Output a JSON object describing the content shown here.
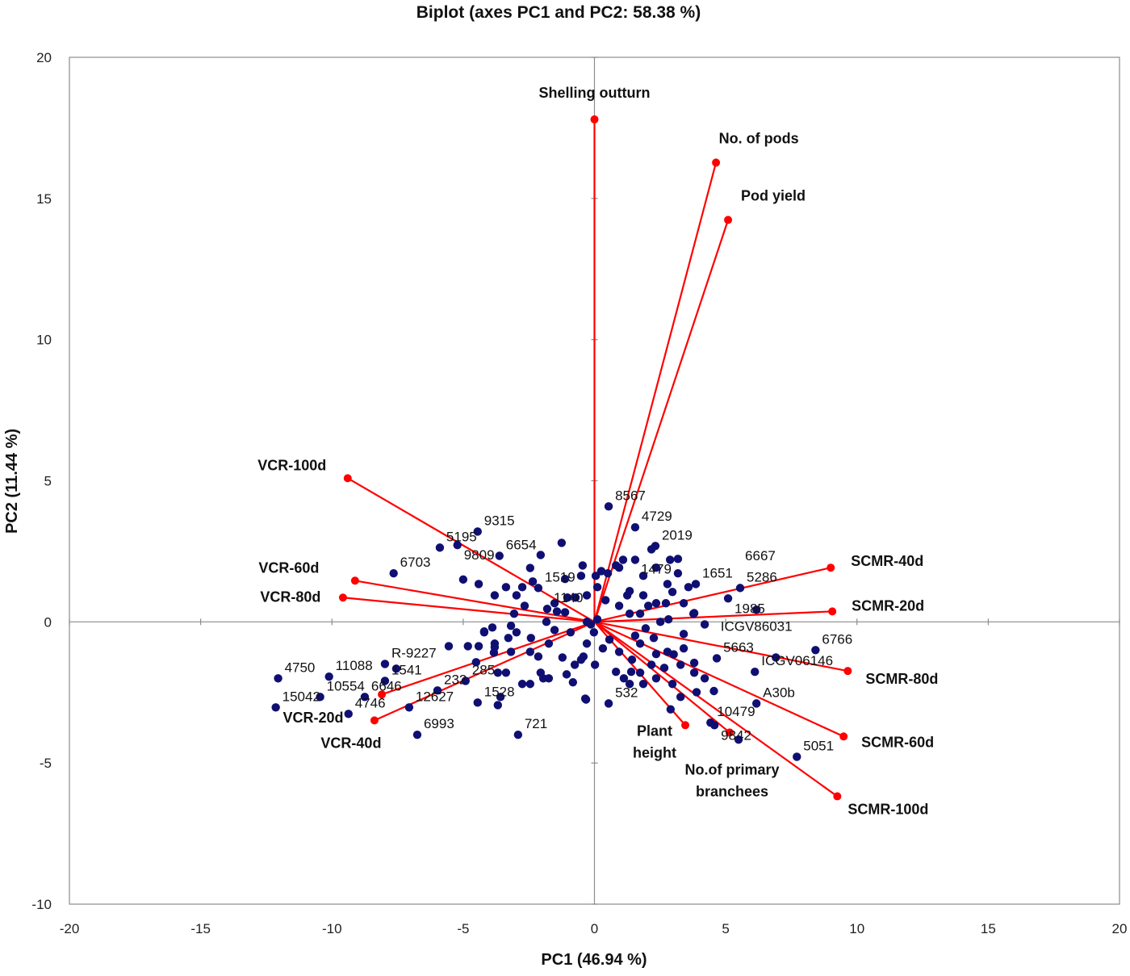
{
  "chart_data": {
    "type": "scatter",
    "subtype": "biplot",
    "title": "Biplot (axes PC1 and PC2: 58.38 %)",
    "xlabel": "PC1 (46.94 %)",
    "ylabel": "PC2 (11.44 %)",
    "xlim": [
      -20,
      20
    ],
    "ylim": [
      -10,
      20
    ],
    "xticks": [
      -20,
      -15,
      -10,
      -5,
      0,
      5,
      10,
      15,
      20
    ],
    "yticks": [
      -10,
      -5,
      0,
      5,
      10,
      15,
      20
    ],
    "grid": false,
    "colors": {
      "vectors": "#ff0000",
      "points": "#0f0f73",
      "axes": "#8c8c8c"
    },
    "vectors": [
      {
        "label": [
          "Shelling outturn"
        ],
        "x": 0.0,
        "y": 17.8
      },
      {
        "label": [
          "No. of pods"
        ],
        "x": 4.63,
        "y": 16.27
      },
      {
        "label": [
          "Pod yield"
        ],
        "x": 5.09,
        "y": 14.24
      },
      {
        "label": [
          "VCR-100d"
        ],
        "x": -9.4,
        "y": 5.09
      },
      {
        "label": [
          "VCR-60d"
        ],
        "x": -9.12,
        "y": 1.46
      },
      {
        "label": [
          "VCR-80d"
        ],
        "x": -9.58,
        "y": 0.86
      },
      {
        "label": [
          "VCR-20d"
        ],
        "x": -8.1,
        "y": -2.57
      },
      {
        "label": [
          "VCR-40d"
        ],
        "x": -8.38,
        "y": -3.49
      },
      {
        "label": [
          "SCMR-40d"
        ],
        "x": 9.0,
        "y": 1.92
      },
      {
        "label": [
          "SCMR-20d"
        ],
        "x": 9.06,
        "y": 0.37
      },
      {
        "label": [
          "SCMR-80d"
        ],
        "x": 9.65,
        "y": -1.74
      },
      {
        "label": [
          "SCMR-60d"
        ],
        "x": 9.49,
        "y": -4.06
      },
      {
        "label": [
          "SCMR-100d"
        ],
        "x": 9.25,
        "y": -6.18
      },
      {
        "label": [
          "Plant",
          "height"
        ],
        "x": 3.46,
        "y": -3.66
      },
      {
        "label": [
          "No.of primary",
          "branchees"
        ],
        "x": 5.15,
        "y": -3.92
      }
    ],
    "labeled_points": [
      {
        "label": "8567",
        "x": 0.54,
        "y": 4.09
      },
      {
        "label": "4729",
        "x": 1.55,
        "y": 3.35
      },
      {
        "label": "2019",
        "x": 2.32,
        "y": 2.69
      },
      {
        "label": "9315",
        "x": -4.45,
        "y": 3.2
      },
      {
        "label": "5195",
        "x": -5.89,
        "y": 2.63
      },
      {
        "label": "9809",
        "x": -5.22,
        "y": 2.72
      },
      {
        "label": "6654",
        "x": -3.62,
        "y": 2.34
      },
      {
        "label": "6703",
        "x": -7.65,
        "y": 1.72
      },
      {
        "label": "1519",
        "x": -2.14,
        "y": 1.2
      },
      {
        "label": "1140",
        "x": -1.8,
        "y": 0.46
      },
      {
        "label": "5286",
        "x": 5.55,
        "y": 1.2
      },
      {
        "label": "1651",
        "x": 3.86,
        "y": 1.34
      },
      {
        "label": "1479",
        "x": 3.18,
        "y": 2.23
      },
      {
        "label": "1985",
        "x": 5.09,
        "y": 0.83
      },
      {
        "label": "ICGV86031",
        "x": 6.17,
        "y": 0.43
      },
      {
        "label": "6766",
        "x": 8.42,
        "y": -1.0
      },
      {
        "label": "ICGV06146",
        "x": 6.11,
        "y": -1.77
      },
      {
        "label": "A30b",
        "x": 6.17,
        "y": -2.89
      },
      {
        "label": "5663",
        "x": 4.66,
        "y": -1.29
      },
      {
        "label": "10479",
        "x": 4.42,
        "y": -3.57
      },
      {
        "label": "9842",
        "x": 4.57,
        "y": -3.66
      },
      {
        "label": "6667",
        "x": 5.49,
        "y": -4.17
      },
      {
        "label": "5051",
        "x": 7.71,
        "y": -4.78
      },
      {
        "label": "532",
        "x": 0.54,
        "y": -2.89
      },
      {
        "label": "11088",
        "x": -10.11,
        "y": -1.94
      },
      {
        "label": "4750",
        "x": -12.05,
        "y": -2.0
      },
      {
        "label": "15042",
        "x": -12.14,
        "y": -3.03
      },
      {
        "label": "10554",
        "x": -10.45,
        "y": -2.66
      },
      {
        "label": "6646",
        "x": -8.75,
        "y": -2.66
      },
      {
        "label": "4746",
        "x": -9.37,
        "y": -3.26
      },
      {
        "label": "6993",
        "x": -6.75,
        "y": -4.0
      },
      {
        "label": "721",
        "x": -2.91,
        "y": -4.0
      },
      {
        "label": "12627",
        "x": -7.06,
        "y": -3.03
      },
      {
        "label": "232",
        "x": -5.98,
        "y": -2.43
      },
      {
        "label": "R-9227",
        "x": -7.98,
        "y": -1.49
      },
      {
        "label": "1541",
        "x": -7.98,
        "y": -2.09
      },
      {
        "label": "1528",
        "x": -4.45,
        "y": -2.86
      },
      {
        "label": "285",
        "x": -4.91,
        "y": -2.09
      }
    ],
    "points": [
      [
        -1.25,
        2.8
      ],
      [
        -0.45,
        2.0
      ],
      [
        -0.51,
        1.63
      ],
      [
        0.05,
        1.63
      ],
      [
        0.26,
        1.8
      ],
      [
        0.51,
        1.72
      ],
      [
        0.11,
        1.23
      ],
      [
        0.42,
        0.77
      ],
      [
        0.82,
        2.0
      ],
      [
        0.94,
        0.57
      ],
      [
        1.25,
        0.94
      ],
      [
        1.34,
        0.29
      ],
      [
        1.74,
        0.29
      ],
      [
        2.05,
        0.57
      ],
      [
        2.72,
        0.66
      ],
      [
        3.8,
        0.31
      ],
      [
        4.2,
        -0.09
      ],
      [
        2.51,
        0.0
      ],
      [
        2.82,
        0.09
      ],
      [
        3.4,
        -0.43
      ],
      [
        1.95,
        -0.23
      ],
      [
        1.55,
        -0.49
      ],
      [
        1.74,
        -0.77
      ],
      [
        2.26,
        -0.57
      ],
      [
        0.94,
        -1.06
      ],
      [
        0.57,
        -0.63
      ],
      [
        0.32,
        -0.94
      ],
      [
        0.02,
        -1.52
      ],
      [
        -0.42,
        -1.23
      ],
      [
        -0.29,
        -0.77
      ],
      [
        -0.51,
        -1.34
      ],
      [
        -0.75,
        -1.52
      ],
      [
        -1.22,
        -1.26
      ],
      [
        -1.06,
        -1.86
      ],
      [
        -0.82,
        -2.14
      ],
      [
        -0.35,
        -2.72
      ],
      [
        0.82,
        -1.77
      ],
      [
        1.12,
        -2.0
      ],
      [
        1.43,
        -1.34
      ],
      [
        1.4,
        -1.77
      ],
      [
        -0.14,
        -0.09
      ],
      [
        0.11,
        0.09
      ],
      [
        -0.29,
        0.0
      ],
      [
        -0.02,
        -0.37
      ],
      [
        -0.91,
        -0.37
      ],
      [
        -1.52,
        -0.29
      ],
      [
        -1.83,
        0.0
      ],
      [
        -1.43,
        0.37
      ],
      [
        -1.12,
        0.34
      ],
      [
        -1.52,
        0.66
      ],
      [
        -3.06,
        0.29
      ],
      [
        -3.18,
        -0.14
      ],
      [
        -2.97,
        -0.37
      ],
      [
        -3.89,
        -0.2
      ],
      [
        -4.2,
        -0.37
      ],
      [
        -3.8,
        -0.77
      ],
      [
        -3.28,
        -0.57
      ],
      [
        -2.42,
        -0.57
      ],
      [
        -1.74,
        -0.77
      ],
      [
        -2.45,
        1.91
      ],
      [
        -2.05,
        2.37
      ],
      [
        -1.12,
        1.52
      ],
      [
        -1.03,
        0.86
      ],
      [
        -0.72,
        0.86
      ],
      [
        -0.29,
        0.94
      ],
      [
        -2.66,
        0.57
      ],
      [
        -2.35,
        1.43
      ],
      [
        -2.75,
        1.23
      ],
      [
        -3.37,
        1.23
      ],
      [
        -2.97,
        0.94
      ],
      [
        -3.8,
        0.94
      ],
      [
        -4.41,
        1.34
      ],
      [
        0.94,
        1.92
      ],
      [
        1.09,
        2.2
      ],
      [
        1.34,
        1.09
      ],
      [
        1.86,
        0.94
      ],
      [
        2.35,
        0.66
      ],
      [
        2.78,
        1.34
      ],
      [
        1.86,
        1.63
      ],
      [
        2.35,
        1.92
      ],
      [
        1.55,
        2.2
      ],
      [
        2.17,
        2.57
      ],
      [
        2.88,
        2.2
      ],
      [
        3.18,
        1.72
      ],
      [
        3.58,
        1.23
      ],
      [
        3.4,
        0.66
      ],
      [
        2.97,
        1.06
      ],
      [
        2.78,
        -1.06
      ],
      [
        3.4,
        -0.94
      ],
      [
        2.35,
        -1.14
      ],
      [
        2.17,
        -1.52
      ],
      [
        2.66,
        -1.63
      ],
      [
        3.28,
        -1.52
      ],
      [
        3.8,
        -1.8
      ],
      [
        4.2,
        -2.0
      ],
      [
        1.74,
        -1.8
      ],
      [
        2.35,
        -2.0
      ],
      [
        2.97,
        -2.2
      ],
      [
        3.89,
        -2.49
      ],
      [
        1.86,
        -2.2
      ],
      [
        1.34,
        -2.2
      ],
      [
        3.28,
        -2.66
      ],
      [
        -2.45,
        -1.06
      ],
      [
        -3.18,
        -1.06
      ],
      [
        -3.8,
        -0.9
      ],
      [
        -4.41,
        -0.86
      ],
      [
        -4.51,
        -1.43
      ],
      [
        -3.68,
        -1.8
      ],
      [
        -3.37,
        -1.8
      ],
      [
        -2.14,
        -1.23
      ],
      [
        -2.05,
        -1.8
      ],
      [
        -1.74,
        -2.0
      ],
      [
        -1.95,
        -2.0
      ],
      [
        -2.75,
        -2.2
      ],
      [
        -2.45,
        -2.2
      ],
      [
        -3.58,
        -2.66
      ],
      [
        -3.68,
        -2.95
      ],
      [
        -7.55,
        -1.66
      ],
      [
        -5.55,
        -0.86
      ],
      [
        -4.82,
        -0.86
      ],
      [
        -4.2,
        -0.34
      ],
      [
        -3.83,
        -1.09
      ],
      [
        3.77,
        0.29
      ],
      [
        6.91,
        -1.26
      ],
      [
        3.02,
        -1.15
      ],
      [
        3.8,
        -1.45
      ],
      [
        4.55,
        -2.45
      ],
      [
        -0.32,
        -2.75
      ],
      [
        2.9,
        -3.1
      ],
      [
        -5.0,
        1.5
      ]
    ]
  }
}
